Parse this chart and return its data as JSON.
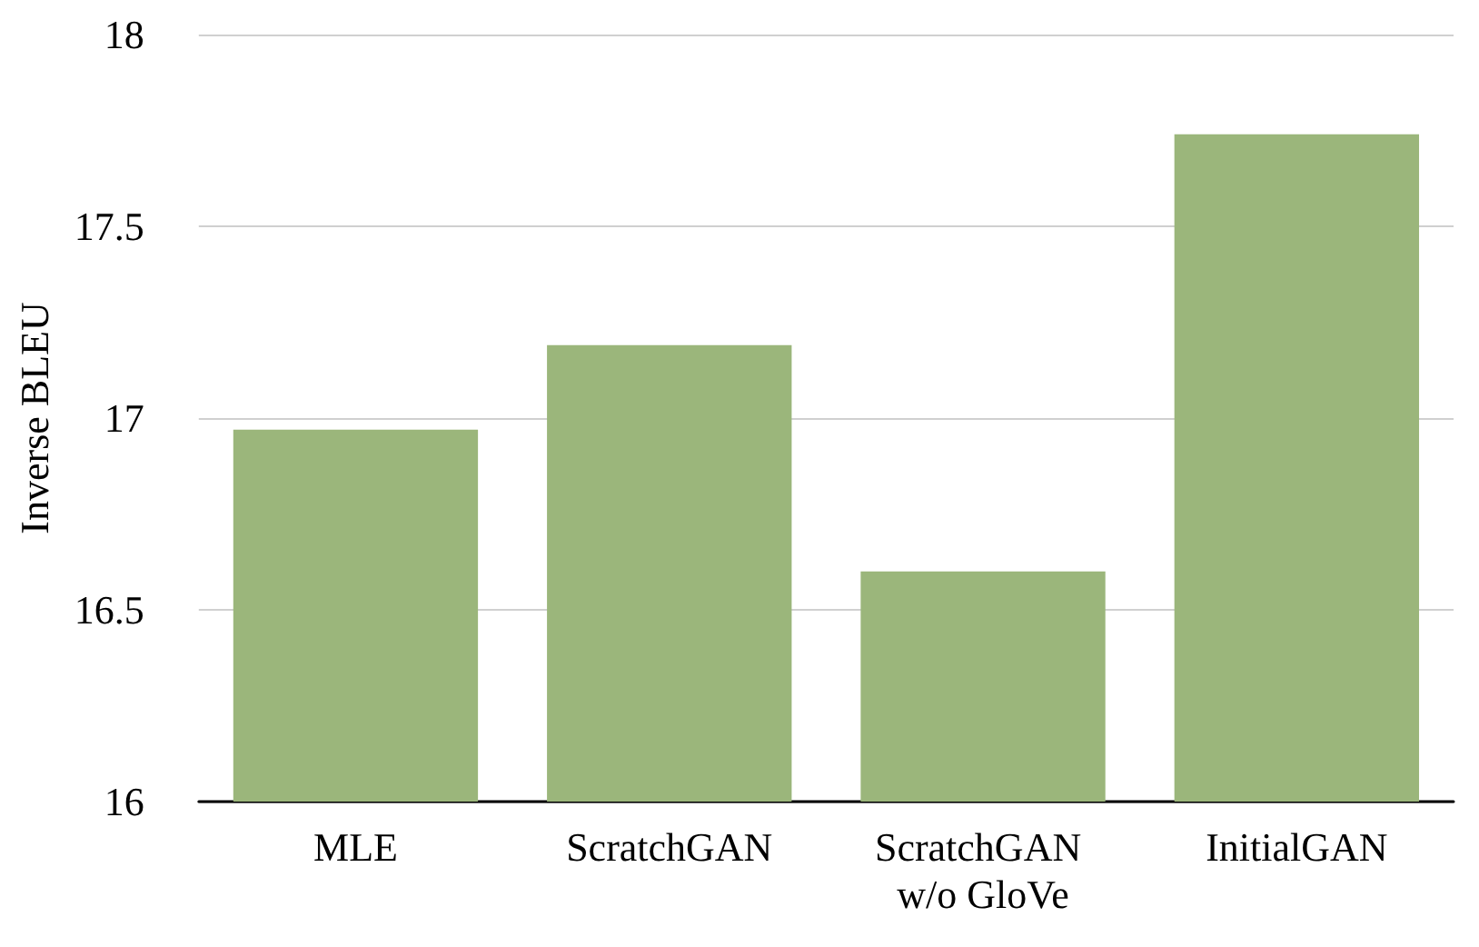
{
  "chart_data": {
    "type": "bar",
    "ylabel": "Inverse BLEU",
    "categories": [
      "MLE",
      "ScratchGAN",
      "ScratchGAN w/o GloVe",
      "InitialGAN"
    ],
    "series": [
      {
        "color": "#9bb67b",
        "values": [
          16.97,
          17.19,
          16.6,
          17.74
        ]
      }
    ],
    "ylim": [
      16,
      18
    ],
    "yticks": [
      16,
      16.5,
      17,
      17.5,
      18
    ],
    "grid": "y"
  }
}
